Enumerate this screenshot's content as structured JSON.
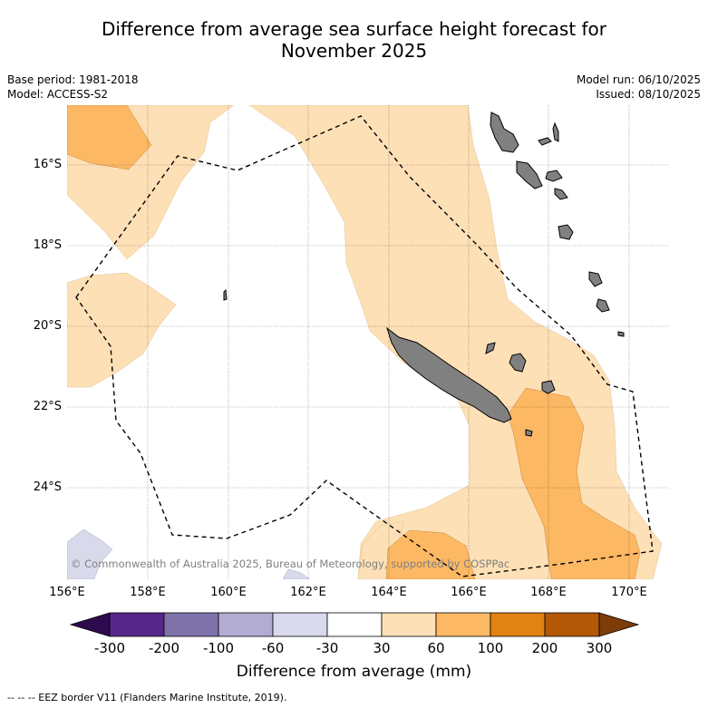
{
  "title_line1": "Difference from average sea surface height forecast for",
  "title_line2": "November 2025",
  "base_period": "Base period: 1981-2018",
  "model": "Model: ACCESS-S2",
  "model_run": "Model run: 06/10/2025",
  "issued": "Issued: 08/10/2025",
  "lat_labels": [
    "16°S",
    "18°S",
    "20°S",
    "22°S",
    "24°S"
  ],
  "lon_labels": [
    "156°E",
    "158°E",
    "160°E",
    "162°E",
    "164°E",
    "166°E",
    "168°E",
    "170°E"
  ],
  "copyright": "© Commonwealth of Australia 2025, Bureau of Meteorology, supported by COSPPac",
  "colorbar": {
    "title": "Difference from average (mm)",
    "ticks": [
      "-300",
      "-200",
      "-100",
      "-60",
      "-30",
      "30",
      "60",
      "100",
      "200",
      "300"
    ],
    "colors": {
      "below_-300": "#2d0a4e",
      "-300_-200": "#542788",
      "-200_-100": "#8073ac",
      "-100_-60": "#b2abd2",
      "-60_-30": "#d8daeb",
      "-30_30": "#ffffff",
      "30_60": "#fee0b6",
      "60_100": "#fdb863",
      "100_200": "#e08214",
      "200_300": "#b35806",
      "above_300": "#7f3b08"
    }
  },
  "footer": "--  --  -- EEZ border V11 (Flanders Marine Institute, 2019).",
  "land_color": "#808080"
}
